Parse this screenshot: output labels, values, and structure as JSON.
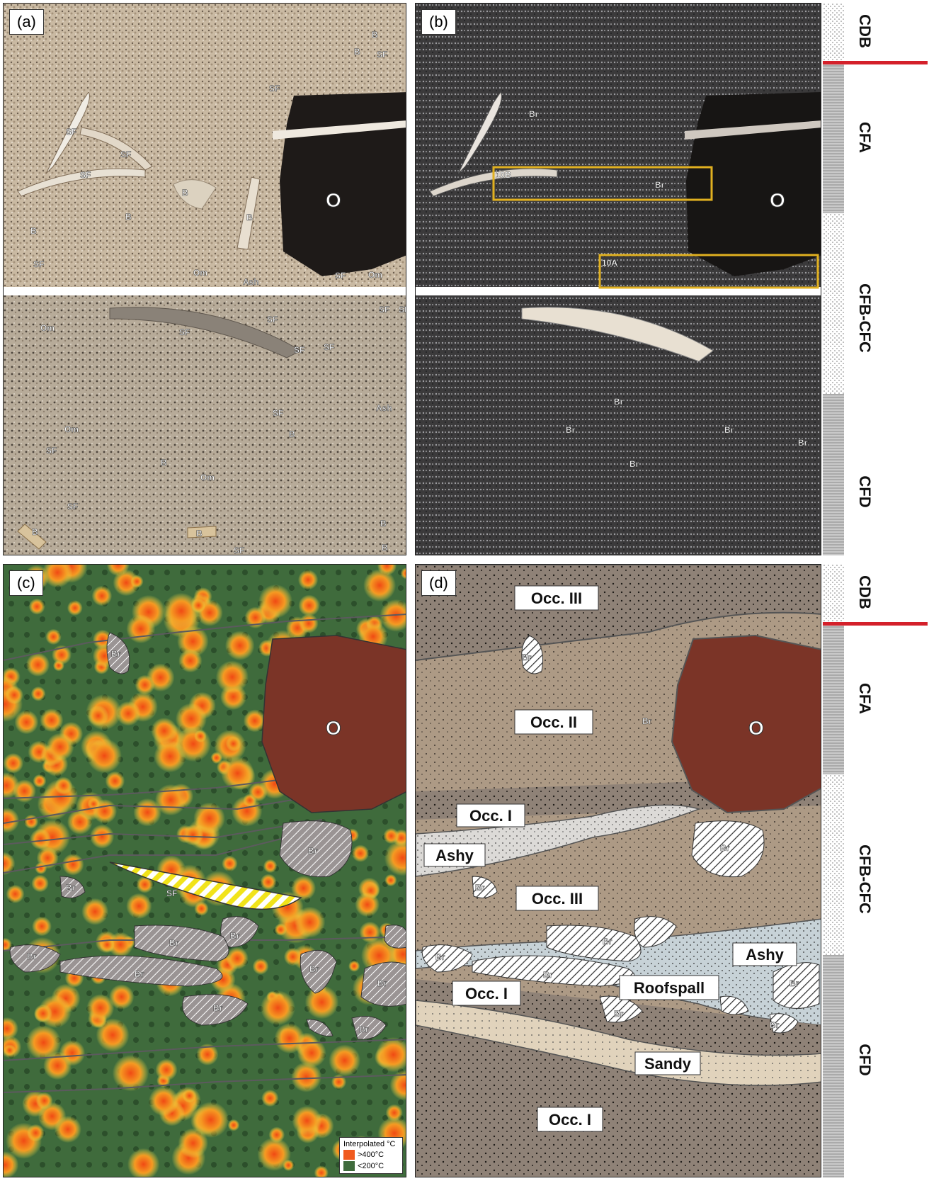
{
  "panels": {
    "a": {
      "label": "(a)"
    },
    "b": {
      "label": "(b)"
    },
    "c": {
      "label": "(c)"
    },
    "d": {
      "label": "(d)"
    }
  },
  "strat_top": [
    "CDB",
    "CFA",
    "CFB-CFC",
    "CFD"
  ],
  "strat_bottom": [
    "CDB",
    "CFA",
    "CFB-CFC",
    "CFD"
  ],
  "panel_a": {
    "labels": [
      "B",
      "B",
      "SF",
      "SF",
      "SF",
      "SF",
      "SF",
      "B",
      "B",
      "B",
      "B",
      "SF",
      "Om",
      "Ash",
      "SF",
      "Om",
      "O",
      "Om",
      "SF",
      "SF",
      "SF",
      "SF",
      "SF",
      "SF",
      "Ash",
      "SF",
      "B",
      "Om",
      "SF",
      "B",
      "Om",
      "B",
      "SF",
      "B",
      "B",
      "SF",
      "B"
    ]
  },
  "panel_b": {
    "box_10b": "10B",
    "box_10a": "10A",
    "labels": [
      "Br",
      "Br",
      "O",
      "Br",
      "Br",
      "Br",
      "Br",
      "Br"
    ]
  },
  "panel_c": {
    "labels": [
      "Br",
      "Br",
      "O",
      "Br",
      "SF",
      "Br",
      "Br",
      "Br",
      "Br",
      "Br",
      "Br",
      "Br",
      "Br"
    ],
    "legend": {
      "title": "Interpolated °C",
      "high": ">400°C",
      "low": "<200°C",
      "high_color": "#f05a1e",
      "low_color": "#3f6b3c"
    }
  },
  "panel_d": {
    "units": [
      "Occ. III",
      "Occ. II",
      "Occ. I",
      "Ashy",
      "Occ. III",
      "Ashy",
      "Roofspall",
      "Occ. I",
      "Sandy",
      "Occ. I"
    ],
    "labels": [
      "Br",
      "Br",
      "O",
      "Br",
      "Br",
      "Br",
      "Br",
      "Br",
      "Br",
      "Br",
      "Br"
    ]
  }
}
